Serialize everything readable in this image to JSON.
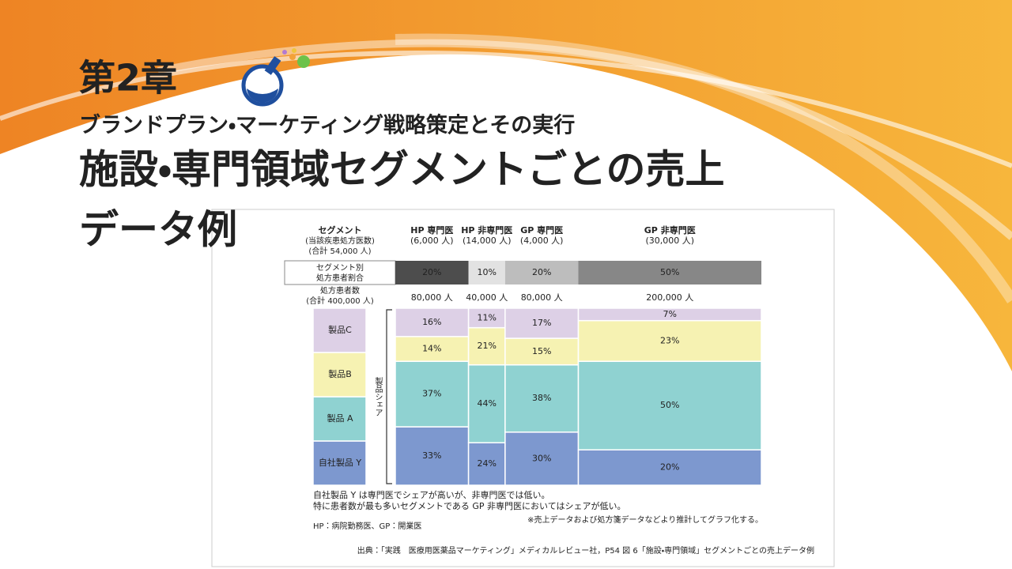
{
  "slide": {
    "chapter": "第2章",
    "subtitle": "ブランドプラン・マーケティング戦略策定とその実行",
    "title": [
      "施設・専門領域セグメントごとの売上",
      "データ例"
    ]
  },
  "chart_data": {
    "type": "marimekko",
    "segment_label": "セグメント",
    "segment_sub": "(当該疾患処方医数)",
    "segment_total": "(合計 54,000 人)",
    "categories": [
      "HP 専門医",
      "HP 非専門医",
      "GP 専門医",
      "GP 非専門医"
    ],
    "category_counts": [
      "(6,000 人)",
      "(14,000 人)",
      "(4,000 人)",
      "(30,000 人)"
    ],
    "ratio_label": [
      "セグメント別",
      "処方患者割合"
    ],
    "ratio": {
      "values": [
        20,
        10,
        20,
        50
      ],
      "value_labels": [
        "20%",
        "10%",
        "20%",
        "50%"
      ],
      "colors": [
        "#4d4d4d",
        "#e2e2e2",
        "#bdbdbd",
        "#878787"
      ],
      "text_colors": [
        "#fff",
        "#333",
        "#333",
        "#fff"
      ]
    },
    "patients_label": "処方患者数",
    "patients_total": "(合計 400,000 人)",
    "widths": {
      "values": [
        80000,
        40000,
        80000,
        200000
      ],
      "value_labels": [
        "80,000 人",
        "40,000 人",
        "80,000 人",
        "200,000 人"
      ]
    },
    "axis_label": "製品シェア",
    "series": [
      {
        "name": "自社製品 Y",
        "color": "#7d98cf",
        "values": [
          33,
          24,
          30,
          20
        ],
        "value_labels": [
          "33%",
          "24%",
          "30%",
          "20%"
        ]
      },
      {
        "name": "製品 A",
        "color": "#8fd2d1",
        "values": [
          37,
          44,
          38,
          50
        ],
        "value_labels": [
          "37%",
          "44%",
          "38%",
          "50%"
        ]
      },
      {
        "name": "製品B",
        "color": "#f6f2b2",
        "values": [
          14,
          21,
          15,
          23
        ],
        "value_labels": [
          "14%",
          "21%",
          "15%",
          "23%"
        ]
      },
      {
        "name": "製品C",
        "color": "#ddd0e6",
        "values": [
          16,
          11,
          17,
          7
        ],
        "value_labels": [
          "16%",
          "11%",
          "17%",
          "7%"
        ]
      }
    ],
    "notes": [
      "自社製品 Y は専門医でシェアが高いが、非専門医では低い。",
      "特に患者数が最も多いセグメントである GP 非専門医においてはシェアが低い。"
    ],
    "estimate_note": "※売上データおよび処方箋データなどより推計してグラフ化する。",
    "abbrev_note": "HP：病院勤務医、GP：開業医",
    "source": "出典：「実践　医療用医薬品マーケティング」メディカルレビュー社，P54 図 6「施設・専門領域」セグメントごとの売上データ例"
  }
}
